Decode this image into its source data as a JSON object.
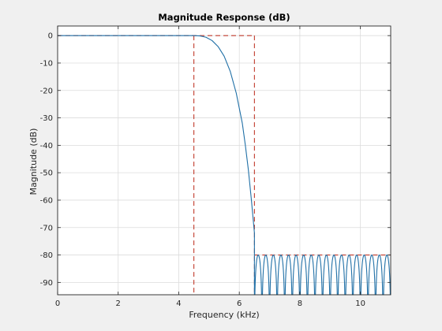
{
  "window": {
    "background": "#f0f0f0"
  },
  "chart_data": {
    "type": "line",
    "title": "Magnitude Response (dB)",
    "xlabel": "Frequency (kHz)",
    "ylabel": "Magnitude (dB)",
    "xlim": [
      0,
      11
    ],
    "ylim": [
      -94.5,
      3.5
    ],
    "x_ticks": [
      0,
      2,
      4,
      6,
      8,
      10
    ],
    "y_ticks": [
      0,
      -10,
      -20,
      -30,
      -40,
      -50,
      -60,
      -70,
      -80,
      -90
    ],
    "grid": true,
    "legend": "none",
    "colors": {
      "response": "#1f6fa6",
      "mask": "#c0392b",
      "grid": "#dcdcdc",
      "axes": "#262626",
      "plot_bg": "#ffffff"
    },
    "series": [
      {
        "x": [
          0,
          4.5,
          4.7,
          4.9,
          5.1,
          5.3,
          5.5,
          5.7,
          5.9,
          6.1,
          6.2,
          6.3,
          6.4,
          6.45,
          6.5
        ],
        "y": [
          0,
          0,
          -0.1,
          -0.6,
          -1.8,
          -4,
          -7.5,
          -13,
          -21,
          -32,
          -40,
          -49,
          -60,
          -66,
          -72
        ],
        "stopband_floor": -80,
        "stopband_start": 6.5,
        "stopband_end": 11,
        "stopband_ripples": 18
      }
    ],
    "mask": {
      "passband_edge": 4.5,
      "stopband_edge": 6.5,
      "passband_level": 0,
      "stopband_level": -80
    }
  }
}
